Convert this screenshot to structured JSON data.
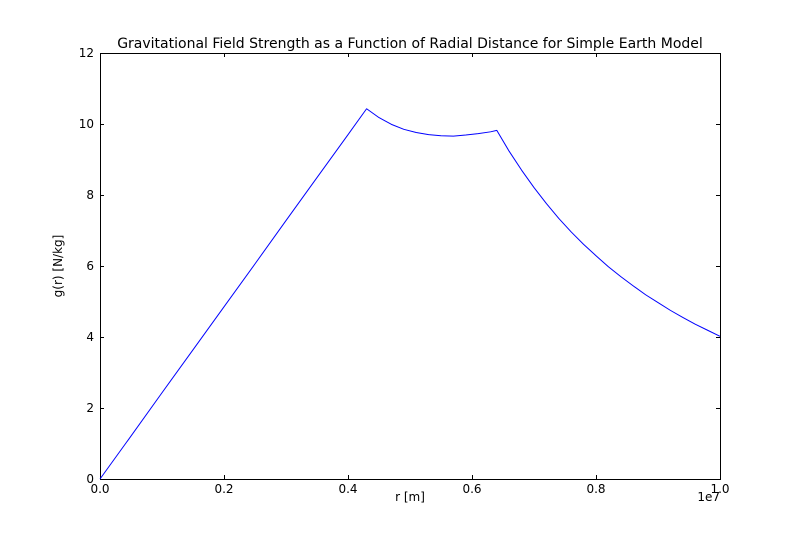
{
  "chart_data": {
    "type": "line",
    "title": "Gravitational Field Strength as a Function of Radial Distance for Simple Earth Model",
    "xlabel": "r [m]",
    "ylabel": "g(r) [N/kg]",
    "x_offset_label": "1e7",
    "xlim": [
      0,
      10000000
    ],
    "ylim": [
      0,
      12
    ],
    "xticks": [
      0,
      2000000,
      4000000,
      6000000,
      8000000,
      10000000
    ],
    "xtick_labels": [
      "0.0",
      "0.2",
      "0.4",
      "0.6",
      "0.8",
      "1.0"
    ],
    "yticks": [
      0,
      2,
      4,
      6,
      8,
      10,
      12
    ],
    "ytick_labels": [
      "0",
      "2",
      "4",
      "6",
      "8",
      "10",
      "12"
    ],
    "grid": false,
    "legend": "none",
    "background_color": "#ffffff",
    "spine_color": "#000000",
    "line_color": "#0000ff",
    "line_width": 1,
    "annotations": {
      "peak_at_core_mantle_boundary": {
        "r_m": 4300000,
        "g": 10.43
      },
      "local_min_in_mantle": {
        "r_m": 5620000,
        "g": 9.66
      },
      "surface_corner": {
        "r_m": 6400000,
        "g": 9.82
      },
      "end_value": {
        "r_m": 10000000,
        "g": 4.02
      }
    },
    "series": [
      {
        "name": "g(r)",
        "x": [
          0,
          500000,
          1000000,
          1500000,
          2000000,
          2500000,
          3000000,
          3500000,
          4000000,
          4300000,
          4500000,
          4700000,
          4900000,
          5100000,
          5300000,
          5500000,
          5700000,
          5900000,
          6100000,
          6300000,
          6400000,
          6600000,
          6800000,
          7000000,
          7200000,
          7400000,
          7600000,
          7800000,
          8000000,
          8200000,
          8400000,
          8600000,
          8800000,
          9000000,
          9200000,
          9400000,
          9600000,
          9800000,
          10000000
        ],
        "y": [
          0,
          1.21,
          2.43,
          3.64,
          4.85,
          6.06,
          7.28,
          8.49,
          9.7,
          10.43,
          10.18,
          9.99,
          9.85,
          9.76,
          9.7,
          9.67,
          9.66,
          9.69,
          9.73,
          9.78,
          9.82,
          9.23,
          8.7,
          8.21,
          7.76,
          7.34,
          6.96,
          6.61,
          6.29,
          5.98,
          5.7,
          5.44,
          5.19,
          4.97,
          4.75,
          4.55,
          4.36,
          4.19,
          4.02
        ]
      }
    ]
  }
}
